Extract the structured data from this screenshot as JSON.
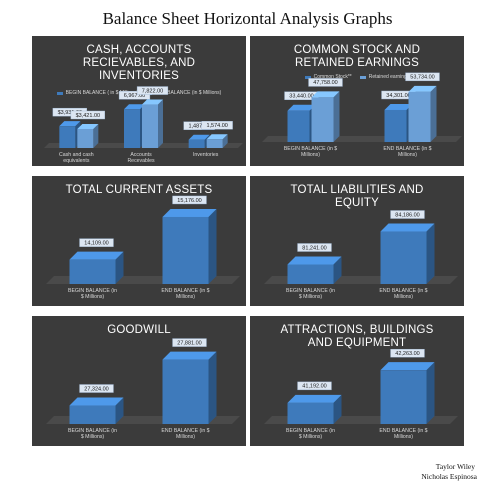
{
  "page_title": "Balance Sheet Horizontal Analysis Graphs",
  "authors": [
    "Taylor Wiley",
    "Nicholas Espinosa"
  ],
  "colors": {
    "begin": "#3e7abb",
    "end": "#6b9fd6",
    "panel": "#3b3b3b",
    "label_box": "#dce6f2"
  },
  "chart_data": [
    {
      "type": "bar",
      "title": "CASH, ACCOUNTS RECIEVABLES, AND INVENTORIES",
      "categories": [
        "Cash and cash equivalents",
        "Accounts Recevables",
        "Inventories"
      ],
      "series": [
        {
          "name": "BEGIN BALANCE ( in $ Millions)",
          "values": [
            3931,
            6967,
            1487
          ],
          "labels": [
            "$3,931.00",
            "6,967.00",
            "1,487.00"
          ]
        },
        {
          "name": "END BALANCE (in $ Millions)",
          "values": [
            3421,
            7822,
            1574
          ],
          "labels": [
            "$3,421.00",
            "7,822.00",
            "1,574.00"
          ]
        }
      ],
      "legend": "top",
      "ylim": [
        0,
        9000
      ]
    },
    {
      "type": "bar",
      "title": "COMMON STOCK AND RETAINED EARNINGS",
      "categories": [
        "BEGIN BALANCE (in $ Millions)",
        "END BALANCE (in $ Millions)"
      ],
      "series": [
        {
          "name": "Common Stock**",
          "values": [
            33440,
            34301
          ],
          "labels": [
            "33,440.00",
            "34,301.00"
          ]
        },
        {
          "name": "Retained earnings",
          "values": [
            47758,
            53734
          ],
          "labels": [
            "47,758.00",
            "53,734.00"
          ]
        }
      ],
      "legend": "top",
      "ylim": [
        0,
        60000
      ]
    },
    {
      "type": "bar",
      "title": "TOTAL CURRENT ASSETS",
      "categories": [
        "BEGIN BALANCE (in $ Millions)",
        "END BALANCE (in $ Millions)"
      ],
      "series": [
        {
          "values": [
            14109,
            15176
          ],
          "labels": [
            "14,109.00",
            "15,176.00"
          ]
        }
      ],
      "ylim": [
        13500,
        15300
      ]
    },
    {
      "type": "bar",
      "title": "TOTAL LIABILITIES AND EQUITY",
      "categories": [
        "BEGIN BALANCE (in $ Millions)",
        "END BALANCE (in $ Millions)"
      ],
      "series": [
        {
          "values": [
            81241,
            84186
          ],
          "labels": [
            "81,241.00",
            "84,186.00"
          ]
        }
      ],
      "ylim": [
        79500,
        84500
      ]
    },
    {
      "type": "bar",
      "title": "GOODWILL",
      "categories": [
        "BEGIN BALANCE (in $ Millions)",
        "END BALANCE (in $ Millions)"
      ],
      "series": [
        {
          "values": [
            27324,
            27881
          ],
          "labels": [
            "27,324.00",
            "27,881.00"
          ]
        }
      ],
      "ylim": [
        27100,
        27900
      ]
    },
    {
      "type": "bar",
      "title": "ATTRACTIONS, BUILDINGS AND EQUIPMENT",
      "categories": [
        "BEGIN BALANCE (in $ Millions)",
        "END BALANCE (in $ Millions)"
      ],
      "series": [
        {
          "values": [
            41192,
            42263
          ],
          "labels": [
            "41,192.00",
            "42,263.00"
          ]
        }
      ],
      "ylim": [
        40500,
        42400
      ]
    }
  ]
}
